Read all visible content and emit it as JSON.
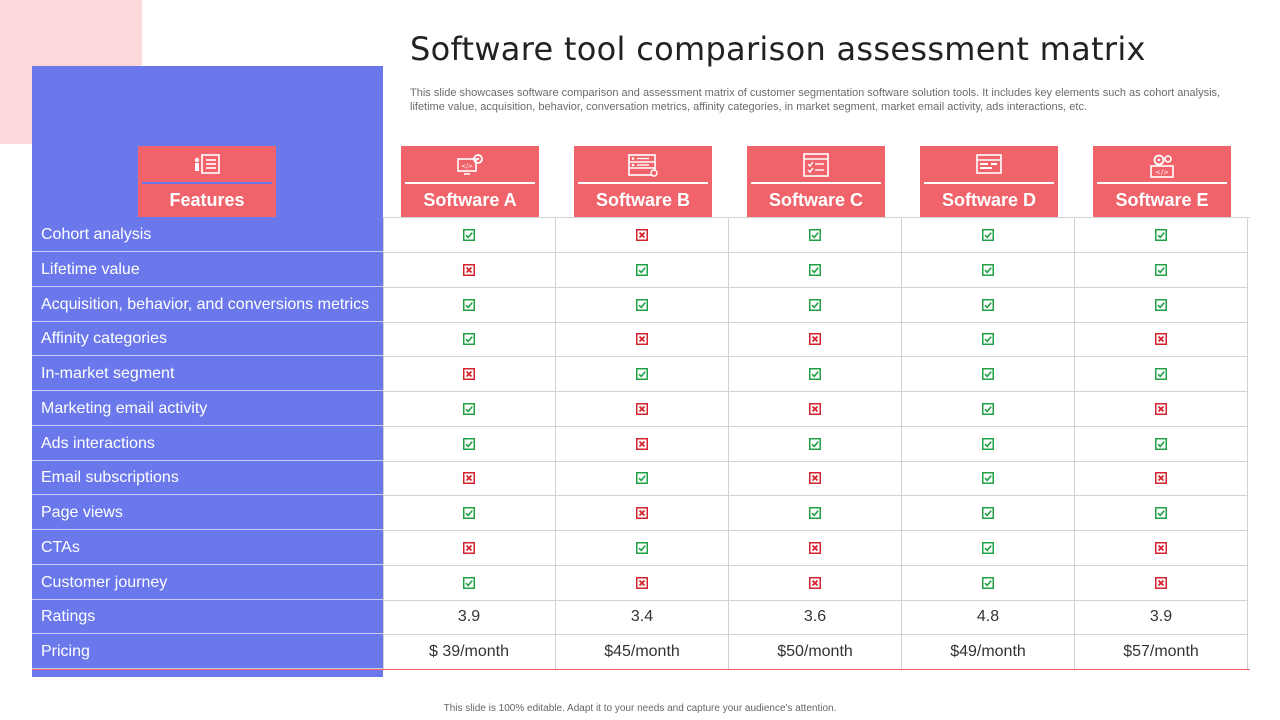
{
  "title": "Software tool comparison assessment matrix",
  "subtitle": "This slide showcases software comparison and assessment matrix of customer segmentation software solution tools. It includes key elements such as cohort analysis, lifetime value, acquisition, behavior, conversation metrics, affinity categories, in market segment, market email activity, ads interactions, etc.",
  "columns": [
    {
      "label": "Features",
      "icon": "features-list-icon"
    },
    {
      "label": "Software A",
      "icon": "gear-code-monitor-icon"
    },
    {
      "label": "Software B",
      "icon": "server-rack-icon"
    },
    {
      "label": "Software C",
      "icon": "checklist-document-icon"
    },
    {
      "label": "Software D",
      "icon": "browser-window-icon"
    },
    {
      "label": "Software E",
      "icon": "gears-code-icon"
    }
  ],
  "rows": [
    {
      "feature": "Cohort analysis",
      "values": [
        "yes",
        "no",
        "yes",
        "yes",
        "yes"
      ]
    },
    {
      "feature": "Lifetime value",
      "values": [
        "no",
        "yes",
        "yes",
        "yes",
        "yes"
      ]
    },
    {
      "feature": "Acquisition, behavior, and conversions metrics",
      "values": [
        "yes",
        "yes",
        "yes",
        "yes",
        "yes"
      ]
    },
    {
      "feature": "Affinity categories",
      "values": [
        "yes",
        "no",
        "no",
        "yes",
        "no"
      ]
    },
    {
      "feature": "In-market  segment",
      "values": [
        "no",
        "yes",
        "yes",
        "yes",
        "yes"
      ]
    },
    {
      "feature": "Marketing email activity",
      "values": [
        "yes",
        "no",
        "no",
        "yes",
        "no"
      ]
    },
    {
      "feature": "Ads interactions",
      "values": [
        "yes",
        "no",
        "yes",
        "yes",
        "yes"
      ]
    },
    {
      "feature": "Email subscriptions",
      "values": [
        "no",
        "yes",
        "no",
        "yes",
        "no"
      ]
    },
    {
      "feature": "Page views",
      "values": [
        "yes",
        "no",
        "yes",
        "yes",
        "yes"
      ]
    },
    {
      "feature": "CTAs",
      "values": [
        "no",
        "yes",
        "no",
        "yes",
        "no"
      ]
    },
    {
      "feature": "Customer journey",
      "values": [
        "yes",
        "no",
        "no",
        "yes",
        "no"
      ]
    },
    {
      "feature": "Ratings",
      "values": [
        "3.9",
        "3.4",
        "3.6",
        "4.8",
        "3.9"
      ]
    },
    {
      "feature": "Pricing",
      "values": [
        "$ 39/month",
        "$45/month",
        "$50/month",
        "$49/month",
        "$57/month"
      ]
    }
  ],
  "colors": {
    "yes": "#22a045",
    "no": "#d42430",
    "header": "#f0636b",
    "panel": "#6a78ec",
    "accent_light": "#fdd9dc"
  },
  "footer": "This slide is 100% editable. Adapt it to your needs and capture your audience's attention."
}
